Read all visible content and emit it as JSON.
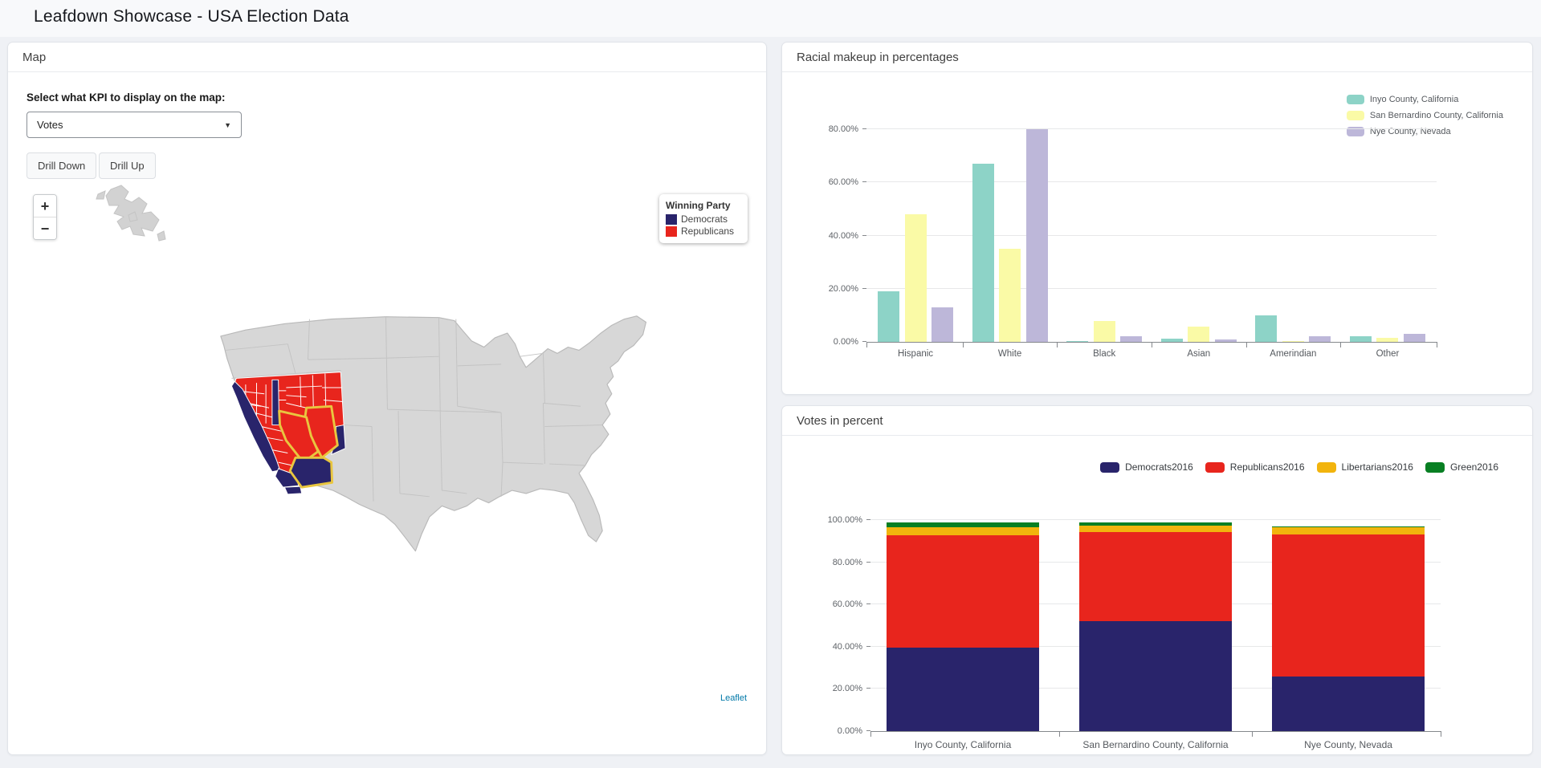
{
  "page": {
    "title": "Leafdown Showcase - USA Election Data"
  },
  "theme": {
    "page_bg": "#eff1f5",
    "panel_bg": "#ffffff",
    "dem": "#29246b",
    "rep": "#e8251d",
    "sel": "#e9c63f",
    "map_fill": "#d7d7d7",
    "map_stroke": "#b9b9b9",
    "island_fill": "#d2d2d2",
    "leaflet_link": "#0078a8"
  },
  "map_panel": {
    "title": "Map",
    "kpi_label": "Select what KPI to display on the map:",
    "kpi_value": "Votes",
    "buttons": {
      "drill_down": "Drill Down",
      "drill_up": "Drill Up"
    },
    "zoom": {
      "in": "+",
      "out": "−"
    },
    "map_legend": {
      "title": "Winning Party",
      "items": [
        {
          "label": "Democrats",
          "color": "#29246b"
        },
        {
          "label": "Republicans",
          "color": "#e8251d"
        }
      ]
    },
    "attribution": "Leaflet"
  },
  "chart_data": [
    {
      "id": "racial",
      "type": "bar",
      "title": "Racial makeup in percentages",
      "categories": [
        "Hispanic",
        "White",
        "Black",
        "Asian",
        "Amerindian",
        "Other"
      ],
      "series": [
        {
          "name": "Inyo County, California",
          "color": "#8dd3c7",
          "values": [
            19,
            67,
            0.3,
            1.2,
            10,
            2
          ]
        },
        {
          "name": "San Bernardino County, California",
          "color": "#fafaa6",
          "values": [
            48,
            35,
            8,
            5.7,
            0.4,
            1.5
          ]
        },
        {
          "name": "Nye County, Nevada",
          "color": "#bdb7d9",
          "values": [
            13,
            80,
            2,
            1,
            2,
            3
          ]
        }
      ],
      "yticks": [
        {
          "value": 0,
          "label": "0.00%"
        },
        {
          "value": 20,
          "label": "20.00%"
        },
        {
          "value": 40,
          "label": "40.00%"
        },
        {
          "value": 60,
          "label": "60.00%"
        },
        {
          "value": 80,
          "label": "80.00%"
        }
      ],
      "ylim": [
        0,
        84
      ],
      "grid": true,
      "legend_position": "top-right"
    },
    {
      "id": "votes",
      "type": "stacked-bar",
      "title": "Votes in percent",
      "categories": [
        "Inyo County, California",
        "San Bernardino County, California",
        "Nye County, Nevada"
      ],
      "series": [
        {
          "name": "Democrats2016",
          "color": "#29246b",
          "values": [
            39.4,
            52.1,
            26.0
          ]
        },
        {
          "name": "Republicans2016",
          "color": "#e8251d",
          "values": [
            53.3,
            42.3,
            67.3
          ]
        },
        {
          "name": "Libertarians2016",
          "color": "#f2b40d",
          "values": [
            3.8,
            3.2,
            3.3
          ]
        },
        {
          "name": "Green2016",
          "color": "#087f23",
          "values": [
            2.2,
            1.5,
            0.4
          ]
        }
      ],
      "yticks": [
        {
          "value": 0,
          "label": "0.00%"
        },
        {
          "value": 20,
          "label": "20.00%"
        },
        {
          "value": 40,
          "label": "40.00%"
        },
        {
          "value": 60,
          "label": "60.00%"
        },
        {
          "value": 80,
          "label": "80.00%"
        },
        {
          "value": 100,
          "label": "100.00%"
        }
      ],
      "ylim": [
        0,
        100
      ],
      "grid": true,
      "legend_position": "top-right"
    }
  ]
}
